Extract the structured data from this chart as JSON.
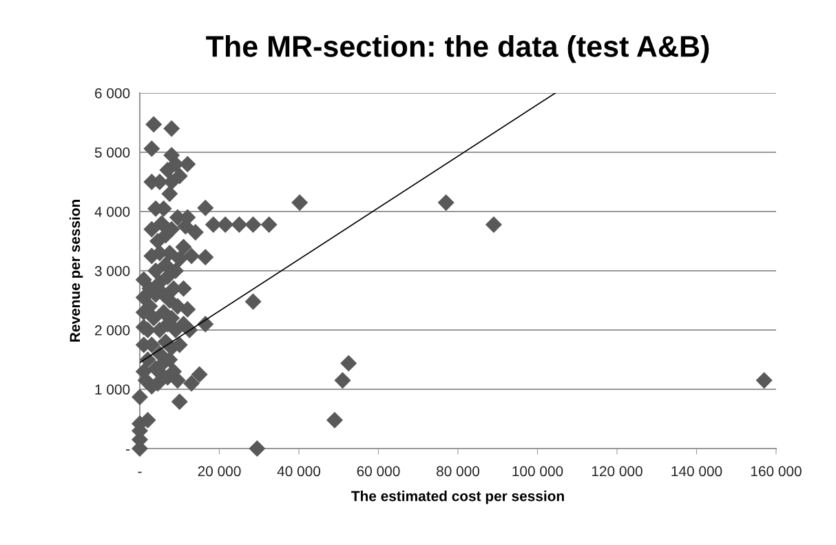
{
  "chart_data": {
    "type": "scatter",
    "title": "The MR-section: the data (test A&B)",
    "xlabel": "The estimated cost per session",
    "ylabel": "Revenue per session",
    "grid": "y",
    "xlim": [
      0,
      160000
    ],
    "ylim": [
      0,
      6000
    ],
    "xticks": [
      {
        "value": 0,
        "label": "-"
      },
      {
        "value": 20000,
        "label": "20 000"
      },
      {
        "value": 40000,
        "label": "40 000"
      },
      {
        "value": 60000,
        "label": "60 000"
      },
      {
        "value": 80000,
        "label": "80 000"
      },
      {
        "value": 100000,
        "label": "100 000"
      },
      {
        "value": 120000,
        "label": "120 000"
      },
      {
        "value": 140000,
        "label": "140 000"
      },
      {
        "value": 160000,
        "label": "160 000"
      }
    ],
    "yticks": [
      {
        "value": 0,
        "label": "-"
      },
      {
        "value": 1000,
        "label": "1 000"
      },
      {
        "value": 2000,
        "label": "2 000"
      },
      {
        "value": 3000,
        "label": "3 000"
      },
      {
        "value": 4000,
        "label": "4 000"
      },
      {
        "value": 5000,
        "label": "5 000"
      },
      {
        "value": 6000,
        "label": "6 000"
      }
    ],
    "series": [
      {
        "color": "#595959",
        "marker": "diamond",
        "x": [
          16500,
          16500,
          16500,
          28500,
          29500,
          49000,
          51000,
          52500,
          10000,
          13000,
          15000,
          14000,
          13000,
          12000,
          40200,
          77000,
          89000,
          157000,
          18500,
          21500,
          25000,
          28500,
          32500,
          3500,
          8000,
          3000,
          8000,
          0,
          0,
          0,
          0,
          2000,
          0,
          1000,
          1000,
          1000,
          1000,
          1000,
          1000,
          1500,
          2000,
          2000,
          2500,
          2500,
          3000,
          3000,
          3000,
          3000,
          3000,
          3500,
          4000,
          4000,
          4000,
          4000,
          4500,
          4500,
          5000,
          5000,
          5000,
          5000,
          5000,
          5500,
          5500,
          6000,
          6000,
          6000,
          6000,
          6500,
          6500,
          6500,
          7000,
          7000,
          7000,
          7000,
          7500,
          7500,
          7500,
          7500,
          8000,
          8000,
          8000,
          8000,
          8500,
          8500,
          9000,
          9000,
          9000,
          9500,
          9500,
          9500,
          10000,
          10000,
          10000,
          11000,
          11000,
          11000,
          11500,
          12000,
          12000,
          12500
        ],
        "values": [
          4060,
          3230,
          2100,
          2480,
          0,
          480,
          1150,
          1440,
          790,
          1100,
          1250,
          3650,
          3250,
          3900,
          4150,
          4150,
          3780,
          1150,
          3780,
          3780,
          3780,
          3780,
          3780,
          5470,
          5400,
          5060,
          4950,
          0,
          150,
          300,
          420,
          480,
          870,
          1300,
          1750,
          2050,
          2300,
          2550,
          2850,
          1150,
          1500,
          2000,
          2400,
          2700,
          1050,
          1750,
          3250,
          3700,
          4500,
          2200,
          1350,
          2600,
          3000,
          4050,
          1100,
          3500,
          1600,
          2000,
          2800,
          3300,
          4500,
          1250,
          3800,
          1450,
          2300,
          2600,
          4050,
          1800,
          3100,
          3600,
          1200,
          2100,
          2900,
          4700,
          1500,
          2500,
          3300,
          4300,
          1700,
          2200,
          3700,
          4500,
          1300,
          2700,
          2000,
          3000,
          4800,
          1150,
          2400,
          3900,
          1750,
          3200,
          4600,
          2100,
          2700,
          3400,
          3750,
          4800,
          2350,
          2000
        ]
      },
      {
        "type": "line",
        "color": "#000000",
        "line_style": "solid",
        "x": [
          0,
          104500
        ],
        "values": [
          1450,
          6000
        ]
      }
    ]
  }
}
